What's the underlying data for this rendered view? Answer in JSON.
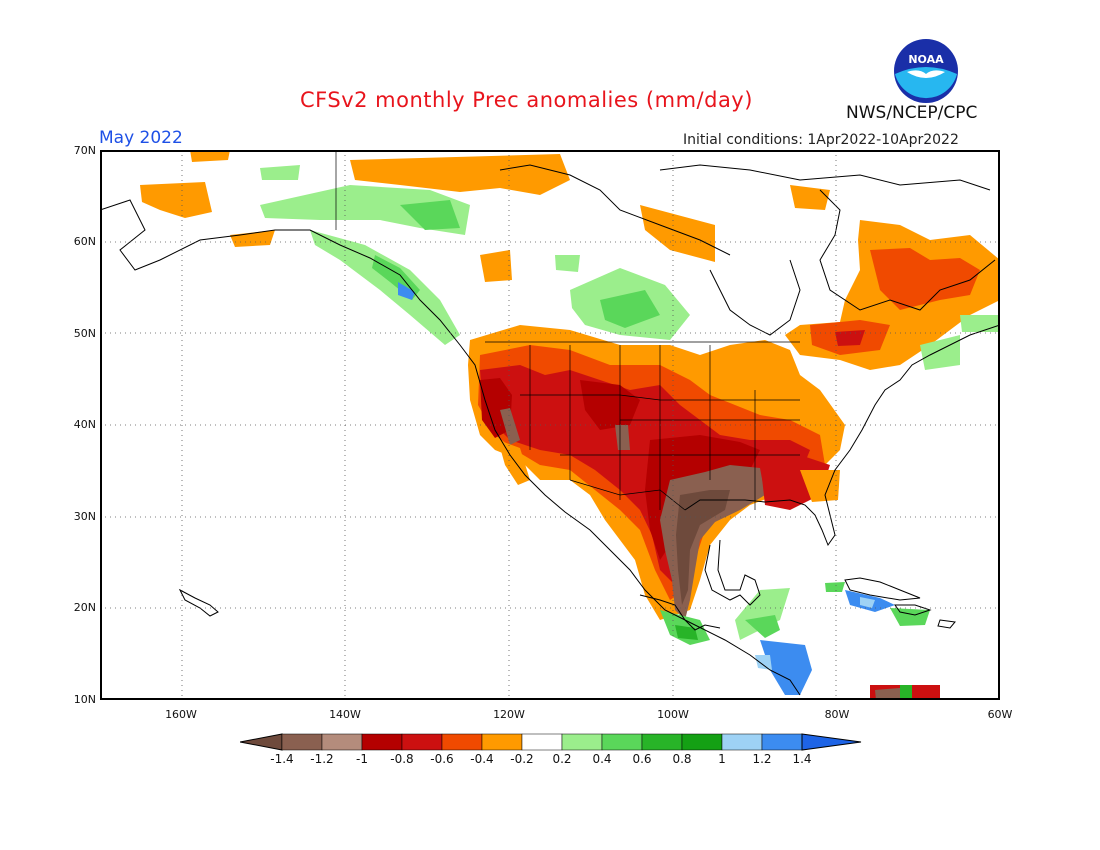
{
  "header": {
    "title": "CFSv2 monthly Prec anomalies (mm/day)",
    "month": "May 2022",
    "initial_conditions": "Initial conditions: 1Apr2022-10Apr2022",
    "agency": "NWS/NCEP/CPC",
    "logo_text": "NOAA"
  },
  "axes": {
    "lat_labels": [
      "70N",
      "60N",
      "50N",
      "40N",
      "30N",
      "20N",
      "10N"
    ],
    "lon_labels": [
      "160W",
      "140W",
      "120W",
      "100W",
      "80W",
      "60W"
    ]
  },
  "colorbar": {
    "labels": [
      "-1.4",
      "-1.2",
      "-1",
      "-0.8",
      "-0.6",
      "-0.4",
      "-0.2",
      "0.2",
      "0.4",
      "0.6",
      "0.8",
      "1",
      "1.2",
      "1.4"
    ],
    "colors": [
      "#6e4a3c",
      "#8a6050",
      "#b48c7c",
      "#b40000",
      "#cc1010",
      "#f04a00",
      "#ff9a00",
      "#ffffff",
      "#9bee8c",
      "#5ad75a",
      "#28b428",
      "#14a014",
      "#9ed2f5",
      "#3c8cf0",
      "#1e64e6"
    ]
  },
  "map": {
    "extent": {
      "lon": [
        -170,
        -60
      ],
      "lat": [
        10,
        70
      ]
    },
    "colors": {
      "brown": "#8a6050",
      "darkbrown": "#6e4a3c",
      "darkred": "#b40000",
      "red": "#cc1010",
      "orange_red": "#f04a00",
      "orange": "#ff9a00",
      "lightgreen": "#9bee8c",
      "green": "#5ad75a",
      "darkgreen": "#28b428",
      "lightblue": "#9ed2f5",
      "blue": "#3c8cf0"
    }
  }
}
